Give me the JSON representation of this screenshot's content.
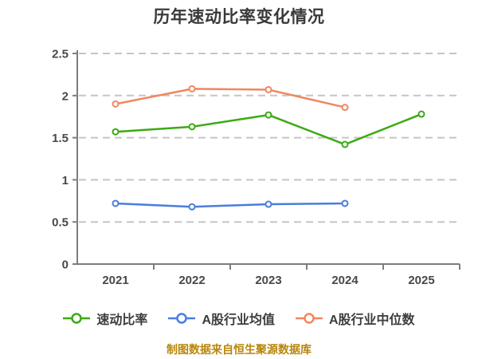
{
  "chart_data": {
    "type": "line",
    "title": "历年速动比率变化情况",
    "categories": [
      "2021",
      "2022",
      "2023",
      "2024",
      "2025"
    ],
    "series": [
      {
        "name": "速动比率",
        "color": "#3caa14",
        "values": [
          1.57,
          1.63,
          1.77,
          1.42,
          1.78
        ]
      },
      {
        "name": "A股行业均值",
        "color": "#4a7dde",
        "values": [
          0.72,
          0.68,
          0.71,
          0.72,
          null
        ]
      },
      {
        "name": "A股行业中位数",
        "color": "#f0875f",
        "values": [
          1.9,
          2.08,
          2.07,
          1.86,
          null
        ]
      }
    ],
    "ylim": [
      0,
      2.5
    ],
    "ytick_step": 0.5,
    "ytick_labels": [
      "0",
      "0.5",
      "1",
      "1.5",
      "2",
      "2.5"
    ],
    "xlabel": "",
    "ylabel": "",
    "grid": "horizontal-dashed",
    "legend_position": "bottom",
    "marker": "circle-white-fill"
  },
  "caption": {
    "text": "制图数据来自恒生聚源数据库",
    "color": "#b8860b"
  },
  "colors": {
    "background": "#ffffff",
    "title_text": "#3a3a3a",
    "axis": "#7d7d7d",
    "tick_text": "#484848",
    "gridline": "#c5c5c5",
    "legend_text": "#3d3d3d"
  }
}
